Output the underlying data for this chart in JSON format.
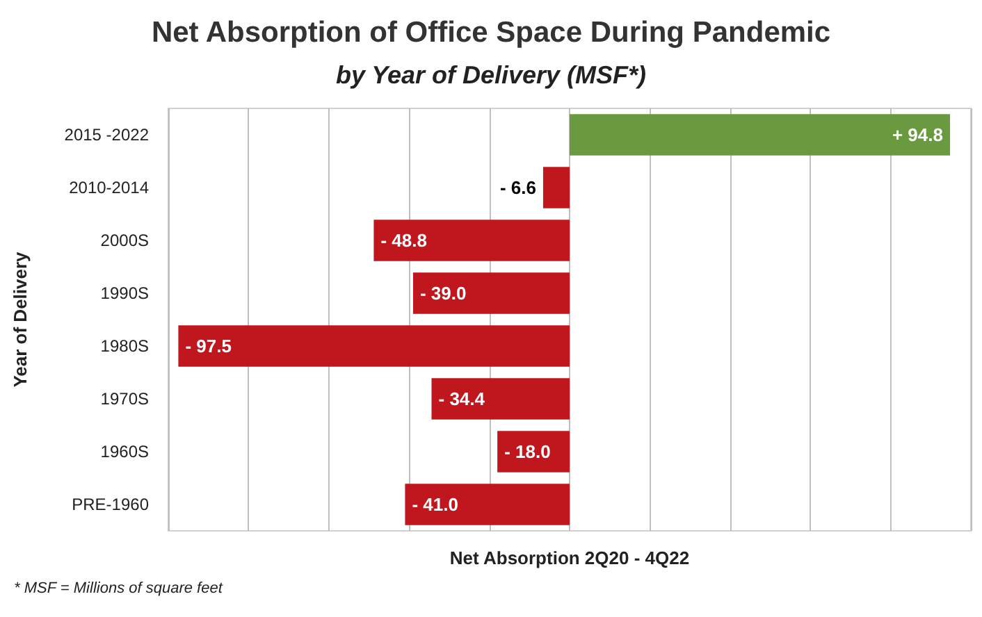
{
  "chart_data": {
    "type": "bar",
    "orientation": "horizontal",
    "title": "Net Absorption of Office Space During Pandemic",
    "subtitle": "by Year of Delivery (MSF*)",
    "xlabel": "Net Absorption 2Q20 - 4Q22",
    "ylabel": "Year of Delivery",
    "categories": [
      "2015 -2022",
      "2010-2014",
      "2000S",
      "1990S",
      "1980S",
      "1970S",
      "1960S",
      "PRE-1960"
    ],
    "values": [
      94.8,
      -6.6,
      -48.8,
      -39.0,
      -97.5,
      -34.4,
      -18.0,
      -41.0
    ],
    "colors": [
      "#6a9a3f",
      "#c0161d",
      "#c0161d",
      "#c0161d",
      "#c0161d",
      "#c0161d",
      "#c0161d",
      "#c0161d"
    ],
    "value_labels": [
      "+ 94.8",
      "- 6.6",
      "- 48.8",
      "- 39.0",
      "- 97.5",
      "- 34.4",
      "- 18.0",
      "- 41.0"
    ],
    "xlim": [
      -100,
      100
    ],
    "xticks": [
      {
        "value": -100,
        "label": null
      },
      {
        "value": -80,
        "label": null
      },
      {
        "value": -60,
        "label": null
      },
      {
        "value": -40,
        "label": null
      },
      {
        "value": -20,
        "label": null
      },
      {
        "value": 0,
        "label": null
      },
      {
        "value": 20,
        "label": null
      },
      {
        "value": 40,
        "label": null
      },
      {
        "value": 60,
        "label": null
      },
      {
        "value": 80,
        "label": null
      },
      {
        "value": 100,
        "label": null
      }
    ],
    "grid": "x",
    "annotations": [
      "* MSF = Millions of square feet"
    ]
  }
}
